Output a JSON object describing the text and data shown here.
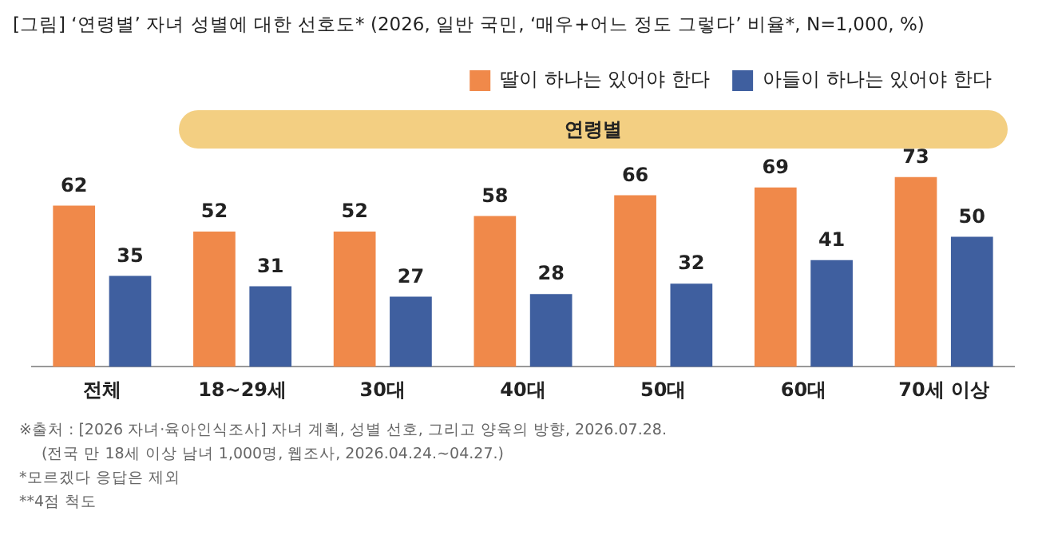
{
  "chart_data": {
    "type": "bar",
    "title": "[그림] ‘연령별’ 자녀 성별에 대한 선호도* (2026, 일반 국민, ‘매우+어느 정도 그렇다’ 비율*,  N=1,000, %)",
    "categories": [
      "전체",
      "18~29세",
      "30대",
      "40대",
      "50대",
      "60대",
      "70세 이상"
    ],
    "series": [
      {
        "name": "딸이 하나는 있어야 한다",
        "color": "#f0894a",
        "values": [
          62,
          52,
          52,
          58,
          66,
          69,
          73
        ]
      },
      {
        "name": "아들이 하나는 있어야 한다",
        "color": "#3f5f9f",
        "values": [
          35,
          31,
          27,
          28,
          32,
          41,
          50
        ]
      }
    ],
    "data_labels": true,
    "legend": "top right",
    "grid": false,
    "annotations": [
      "연령별",
      "※출처 : [2026 자녀·육아인식조사] 자녀 계획, 성별 선호, 그리고 양육의 방향, 2026.07.28.",
      "(전국 만 18세 이상 남녀 1,000명, 웹조사, 2026.04.24.~04.27.)",
      "*모르겠다 응답은 제외",
      "**4점 척도"
    ]
  }
}
